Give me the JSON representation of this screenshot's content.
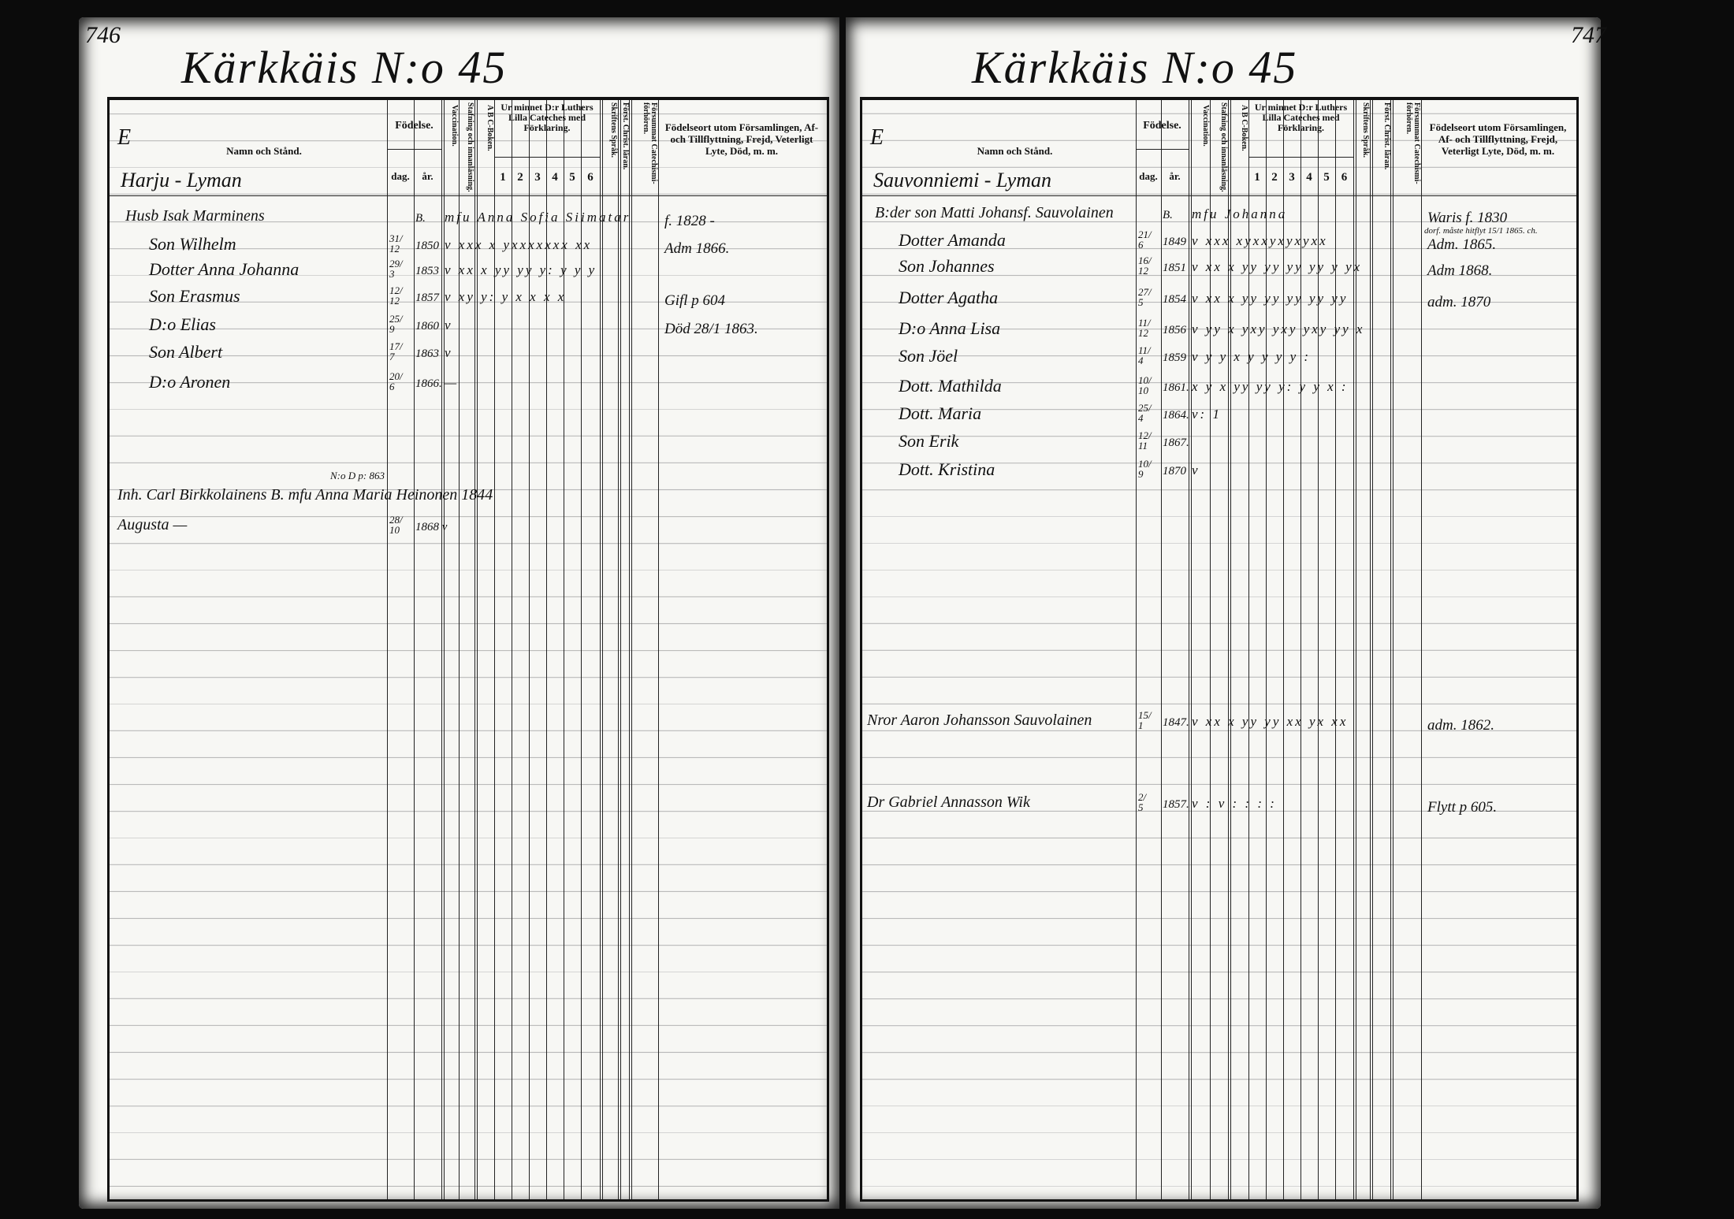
{
  "header": {
    "e_mark": "E",
    "name_col": "Namn och Stånd.",
    "birth": "Födelse.",
    "day": "dag.",
    "year": "år.",
    "vaccination": "Vaccination.",
    "stafning": "Stafning och innanläsning.",
    "abc": "A B C-Boken.",
    "catechism": "Ur minnet D:r Luthers Lilla Cateches med Förklaring.",
    "catechism_cols": [
      "1",
      "2",
      "3",
      "4",
      "5",
      "6"
    ],
    "skrift": "Skriftens Språk.",
    "forst": "Först. Christ. läran.",
    "forsummat": "Försummat Catechismi-förhören.",
    "fodelseort": "Födelseort utom Församlingen, Af- och Tillflyttning, Frejd, Veterligt Lyte, Död, m. m."
  },
  "left_page": {
    "page_number": "746",
    "title": "Kärkkäis N:o 45",
    "section": "Harju - Lyman",
    "entries": [
      {
        "name": "Husb Isak Marminens",
        "day": "",
        "year": "B.",
        "marks": "mfu Anna Sofia Siimatar",
        "note": "f. 1828 -"
      },
      {
        "name": "Son Wilhelm",
        "day": "31/12",
        "year": "1850",
        "marks": "v xxx x yxxxxxxx xx",
        "note": "Adm 1866."
      },
      {
        "name": "Dotter Anna Johanna",
        "day": "29/3",
        "year": "1853",
        "marks": "v xx x yy yy y: y y y",
        "note": ""
      },
      {
        "name": "Son Erasmus",
        "day": "12/12",
        "year": "1857",
        "marks": "v xy y: y x x x x",
        "note": "Gifl p 604"
      },
      {
        "name": "D:o Elias",
        "day": "25/9",
        "year": "1860",
        "marks": "v",
        "note": "Död 28/1 1863."
      },
      {
        "name": "Son Albert",
        "day": "17/7",
        "year": "1863",
        "marks": "v",
        "note": ""
      },
      {
        "name": "D:o Aronen",
        "day": "20/6",
        "year": "1866.",
        "marks": "—",
        "note": ""
      }
    ],
    "extra": [
      {
        "name": "Inh. Carl Birkkolainens B. mfu Anna Maria Heinonen 1844",
        "super": "N:o D p: 863",
        "day": "",
        "year": ""
      },
      {
        "name": "Augusta —",
        "day": "28/10",
        "year": "1868 v"
      }
    ]
  },
  "right_page": {
    "page_number": "747",
    "title": "Kärkkäis N:o 45",
    "section": "Sauvonniemi - Lyman",
    "entries": [
      {
        "name": "B:der son Matti Johansf. Sauvolainen",
        "day": "",
        "year": "B.",
        "marks": "mfu Johanna",
        "note": "Waris f. 1830"
      },
      {
        "name": "Dotter Amanda",
        "day": "21/6",
        "year": "1849",
        "marks": "v xxx xyxxyxyxyxx",
        "note": "Adm. 1865."
      },
      {
        "name": "Son Johannes",
        "day": "16/12",
        "year": "1851",
        "marks": "v xx x yy yy yy yy y yx",
        "note": "Adm 1868."
      },
      {
        "name": "Dotter Agatha",
        "day": "27/5",
        "year": "1854",
        "marks": "v xx x yy yy yy yy yy",
        "note": "adm. 1870"
      },
      {
        "name": "D:o Anna Lisa",
        "day": "11/12",
        "year": "1856",
        "marks": "v yy x yxy yxy yxy yy x",
        "note": ""
      },
      {
        "name": "Son Jöel",
        "day": "11/4",
        "year": "1859",
        "marks": "v y y x y y y y :",
        "note": ""
      },
      {
        "name": "Dott. Mathilda",
        "day": "10/10",
        "year": "1861.",
        "marks": "x y x yy yy y: y y x :",
        "note": ""
      },
      {
        "name": "Dott. Maria",
        "day": "25/4",
        "year": "1864.",
        "marks": "v: 1",
        "note": ""
      },
      {
        "name": "Son Erik",
        "day": "12/11",
        "year": "1867.",
        "marks": "",
        "note": ""
      },
      {
        "name": "Dott. Kristina",
        "day": "10/9",
        "year": "1870",
        "marks": "v",
        "note": ""
      }
    ],
    "side_note": "dorf. måste hitflyt 15/1 1865. ch.",
    "extra": [
      {
        "name": "Nror Aaron Johansson Sauvolainen",
        "day": "15/1",
        "year": "1847.",
        "marks": "v xx x yy yy xx yx xx",
        "note": "adm. 1862."
      },
      {
        "name": "Dr Gabriel Annasson Wik",
        "day": "2/5",
        "year": "1857.",
        "marks": "v : v : : : :",
        "note": "Flytt p 605."
      }
    ]
  }
}
